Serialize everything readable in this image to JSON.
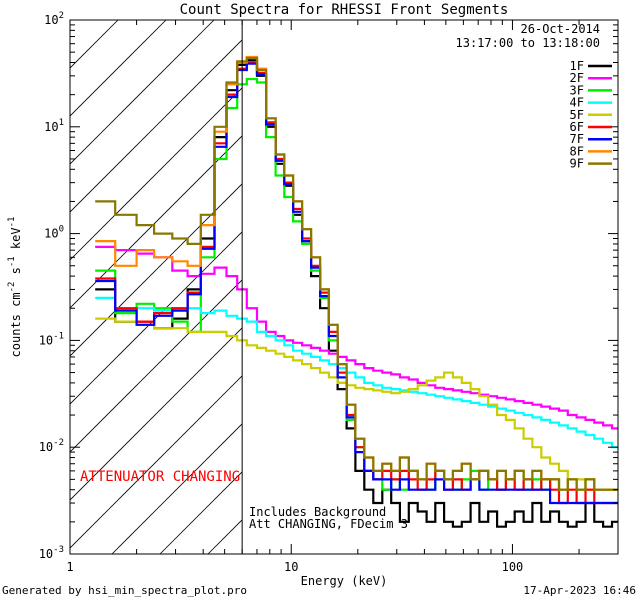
{
  "chart_data": {
    "type": "line",
    "title": "Count Spectra for RHESSI Front Segments",
    "xlabel": "Energy (keV)",
    "ylabel_parts": [
      "counts cm",
      "-2",
      " s",
      "-1",
      " keV",
      "-1"
    ],
    "xscale": "log",
    "yscale": "log",
    "xlim": [
      1,
      300
    ],
    "ylim": [
      0.001,
      100
    ],
    "x_ticks": [
      {
        "v": 1,
        "label": "1"
      },
      {
        "v": 10,
        "label": "10"
      },
      {
        "v": 100,
        "label": "100"
      }
    ],
    "y_ticks": [
      {
        "v": 0.001,
        "base": "10",
        "exp": "-3"
      },
      {
        "v": 0.01,
        "base": "10",
        "exp": "-2"
      },
      {
        "v": 0.1,
        "base": "10",
        "exp": "-1"
      },
      {
        "v": 1,
        "base": "10",
        "exp": "0"
      },
      {
        "v": 10,
        "base": "10",
        "exp": "1"
      },
      {
        "v": 100,
        "base": "10",
        "exp": "2"
      }
    ],
    "date": "26-Oct-2014",
    "time_range": "13:17:00 to 13:18:00",
    "attenuator_text": "ATTENUATOR CHANGING",
    "notes": [
      "Includes Background",
      "Att CHANGING, FDecim 3"
    ],
    "hatch_until": 6,
    "vline_at": 6,
    "energy_edges": [
      1.3,
      1.6,
      2.0,
      2.4,
      2.9,
      3.4,
      3.9,
      4.5,
      5.1,
      5.7,
      6.3,
      7.0,
      7.7,
      8.5,
      9.3,
      10.2,
      11.2,
      12.3,
      13.5,
      14.8,
      16.2,
      17.8,
      19.5,
      21.4,
      23.5,
      25.8,
      28.3,
      31,
      34,
      37.3,
      40.9,
      44.8,
      49.1,
      53.8,
      59,
      64.7,
      70.9,
      77.7,
      85.2,
      93.4,
      102.4,
      112.3,
      123.1,
      135,
      148,
      162.3,
      177.9,
      195,
      213.8,
      234.4,
      257,
      281.8,
      300
    ],
    "series": [
      {
        "name": "1F",
        "color": "#000000",
        "values": [
          0.3,
          0.15,
          0.15,
          0.13,
          0.16,
          0.3,
          0.9,
          8,
          22,
          38,
          42,
          30,
          10,
          4.5,
          2.8,
          1.5,
          0.8,
          0.4,
          0.2,
          0.08,
          0.035,
          0.015,
          0.006,
          0.004,
          0.003,
          0.004,
          0.003,
          0.002,
          0.003,
          0.0025,
          0.002,
          0.003,
          0.002,
          0.0018,
          0.002,
          0.003,
          0.002,
          0.0025,
          0.0018,
          0.002,
          0.0025,
          0.002,
          0.003,
          0.002,
          0.0025,
          0.002,
          0.0018,
          0.002,
          0.003,
          0.002,
          0.0018,
          0.002
        ]
      },
      {
        "name": "2F",
        "color": "#ff00ff",
        "values": [
          0.75,
          0.7,
          0.65,
          0.6,
          0.45,
          0.4,
          0.42,
          0.48,
          0.4,
          0.3,
          0.2,
          0.15,
          0.12,
          0.11,
          0.1,
          0.095,
          0.09,
          0.085,
          0.08,
          0.075,
          0.07,
          0.065,
          0.06,
          0.055,
          0.052,
          0.05,
          0.048,
          0.045,
          0.043,
          0.04,
          0.038,
          0.036,
          0.035,
          0.034,
          0.033,
          0.032,
          0.031,
          0.03,
          0.029,
          0.028,
          0.027,
          0.026,
          0.025,
          0.024,
          0.023,
          0.022,
          0.02,
          0.019,
          0.018,
          0.017,
          0.016,
          0.015
        ]
      },
      {
        "name": "3F",
        "color": "#00ee00",
        "values": [
          0.45,
          0.18,
          0.22,
          0.2,
          0.15,
          0.12,
          0.6,
          5,
          15,
          25,
          28,
          26,
          8,
          3.5,
          2.2,
          1.3,
          0.8,
          0.45,
          0.25,
          0.1,
          0.04,
          0.018,
          0.01,
          0.006,
          0.005,
          0.004,
          0.005,
          0.004,
          0.006,
          0.005,
          0.004,
          0.006,
          0.005,
          0.004,
          0.005,
          0.006,
          0.004,
          0.005,
          0.004,
          0.005,
          0.006,
          0.004,
          0.005,
          0.004,
          0.005,
          0.004,
          0.005,
          0.004,
          0.005,
          0.004,
          0.004,
          0.004
        ]
      },
      {
        "name": "4F",
        "color": "#00ffff",
        "values": [
          0.25,
          0.2,
          0.2,
          0.19,
          0.2,
          0.2,
          0.18,
          0.19,
          0.17,
          0.16,
          0.15,
          0.12,
          0.11,
          0.1,
          0.09,
          0.08,
          0.075,
          0.07,
          0.065,
          0.06,
          0.055,
          0.05,
          0.045,
          0.04,
          0.038,
          0.036,
          0.035,
          0.034,
          0.033,
          0.032,
          0.031,
          0.03,
          0.029,
          0.028,
          0.027,
          0.026,
          0.025,
          0.024,
          0.023,
          0.022,
          0.021,
          0.02,
          0.019,
          0.018,
          0.017,
          0.016,
          0.015,
          0.014,
          0.013,
          0.012,
          0.011,
          0.01
        ]
      },
      {
        "name": "5F",
        "color": "#cccc00",
        "values": [
          0.16,
          0.15,
          0.14,
          0.13,
          0.13,
          0.12,
          0.12,
          0.12,
          0.11,
          0.1,
          0.09,
          0.085,
          0.08,
          0.075,
          0.07,
          0.065,
          0.06,
          0.055,
          0.05,
          0.045,
          0.04,
          0.038,
          0.036,
          0.035,
          0.034,
          0.033,
          0.032,
          0.033,
          0.035,
          0.038,
          0.042,
          0.045,
          0.05,
          0.045,
          0.04,
          0.035,
          0.03,
          0.025,
          0.02,
          0.018,
          0.015,
          0.012,
          0.01,
          0.008,
          0.007,
          0.006,
          0.005,
          0.005,
          0.004,
          0.004,
          0.004,
          0.004
        ]
      },
      {
        "name": "6F",
        "color": "#ff0000",
        "values": [
          0.38,
          0.2,
          0.15,
          0.18,
          0.2,
          0.28,
          0.75,
          7,
          20,
          35,
          40,
          32,
          11,
          5,
          3,
          1.7,
          0.9,
          0.5,
          0.28,
          0.12,
          0.05,
          0.02,
          0.01,
          0.006,
          0.005,
          0.006,
          0.005,
          0.006,
          0.005,
          0.004,
          0.005,
          0.006,
          0.004,
          0.005,
          0.004,
          0.005,
          0.006,
          0.005,
          0.004,
          0.005,
          0.004,
          0.005,
          0.004,
          0.005,
          0.004,
          0.003,
          0.004,
          0.003,
          0.004,
          0.003,
          0.003,
          0.003
        ]
      },
      {
        "name": "7F",
        "color": "#0000ff",
        "values": [
          0.36,
          0.19,
          0.14,
          0.17,
          0.19,
          0.27,
          0.72,
          6.5,
          19,
          34,
          39,
          31,
          10.5,
          4.8,
          2.9,
          1.6,
          0.85,
          0.48,
          0.26,
          0.11,
          0.045,
          0.019,
          0.009,
          0.006,
          0.005,
          0.005,
          0.004,
          0.005,
          0.004,
          0.004,
          0.004,
          0.005,
          0.004,
          0.004,
          0.004,
          0.005,
          0.004,
          0.004,
          0.004,
          0.004,
          0.004,
          0.004,
          0.004,
          0.004,
          0.003,
          0.003,
          0.003,
          0.003,
          0.003,
          0.003,
          0.003,
          0.003
        ]
      },
      {
        "name": "8F",
        "color": "#ff8800",
        "values": [
          0.85,
          0.5,
          0.7,
          0.6,
          0.55,
          0.5,
          1.2,
          9,
          25,
          40,
          45,
          35,
          12,
          5.5,
          3.5,
          2,
          1.1,
          0.6,
          0.3,
          0.14,
          0.06,
          0.025,
          0.012,
          0.008,
          0.006,
          0.007,
          0.006,
          0.008,
          0.006,
          0.005,
          0.007,
          0.006,
          0.005,
          0.006,
          0.007,
          0.005,
          0.006,
          0.005,
          0.006,
          0.005,
          0.006,
          0.005,
          0.006,
          0.005,
          0.005,
          0.004,
          0.005,
          0.004,
          0.005,
          0.004,
          0.004,
          0.004
        ]
      },
      {
        "name": "9F",
        "color": "#887700",
        "values": [
          2,
          1.5,
          1.2,
          1,
          0.9,
          0.8,
          1.5,
          10,
          26,
          41,
          44,
          34,
          12,
          5.5,
          3.5,
          2,
          1.1,
          0.6,
          0.3,
          0.14,
          0.06,
          0.025,
          0.012,
          0.008,
          0.006,
          0.007,
          0.006,
          0.008,
          0.006,
          0.005,
          0.007,
          0.006,
          0.005,
          0.006,
          0.007,
          0.005,
          0.006,
          0.005,
          0.006,
          0.005,
          0.006,
          0.005,
          0.006,
          0.005,
          0.005,
          0.004,
          0.005,
          0.004,
          0.005,
          0.004,
          0.004,
          0.004
        ]
      }
    ]
  },
  "footer": {
    "generated_by": "Generated by hsi_min_spectra_plot.pro",
    "timestamp": "17-Apr-2023 16:46"
  }
}
